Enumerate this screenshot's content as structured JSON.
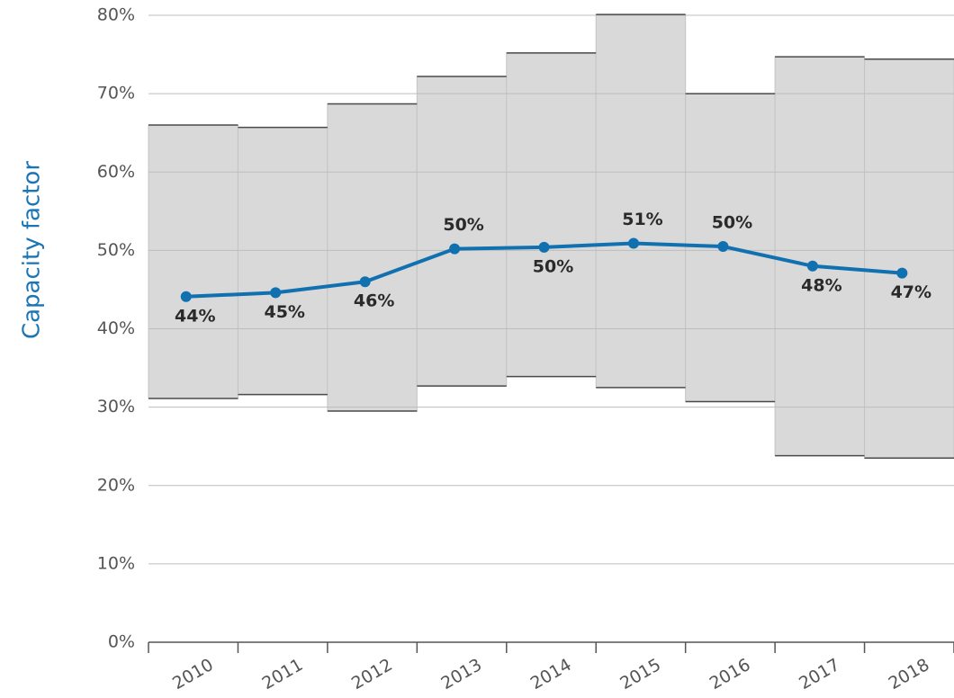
{
  "chart_data": {
    "type": "line",
    "y_label": "Capacity factor",
    "categories": [
      "2010",
      "2011",
      "2012",
      "2013",
      "2014",
      "2015",
      "2016",
      "2017",
      "2018"
    ],
    "values": [
      44.1,
      44.6,
      46.0,
      50.2,
      50.4,
      50.9,
      50.5,
      48.0,
      47.1
    ],
    "value_labels": [
      "44%",
      "45%",
      "46%",
      "50%",
      "50%",
      "51%",
      "50%",
      "48%",
      "47%"
    ],
    "color": "#1170b0",
    "range_high": [
      66.0,
      65.7,
      68.7,
      72.2,
      75.2,
      80.1,
      70.0,
      74.7,
      74.4
    ],
    "range_low": [
      31.1,
      31.6,
      29.5,
      32.7,
      33.9,
      32.5,
      30.7,
      23.8,
      23.5
    ],
    "range_color": "#d9d9d9",
    "ylim": [
      0,
      80
    ],
    "yticks": [
      {
        "value": 0,
        "label": "0%"
      },
      {
        "value": 10,
        "label": "10%"
      },
      {
        "value": 20,
        "label": "20%"
      },
      {
        "value": 30,
        "label": "30%"
      },
      {
        "value": 40,
        "label": "40%"
      },
      {
        "value": 50,
        "label": "50%"
      },
      {
        "value": 60,
        "label": "60%"
      },
      {
        "value": 70,
        "label": "70%"
      },
      {
        "value": 80,
        "label": "80%"
      }
    ],
    "grid": true
  }
}
